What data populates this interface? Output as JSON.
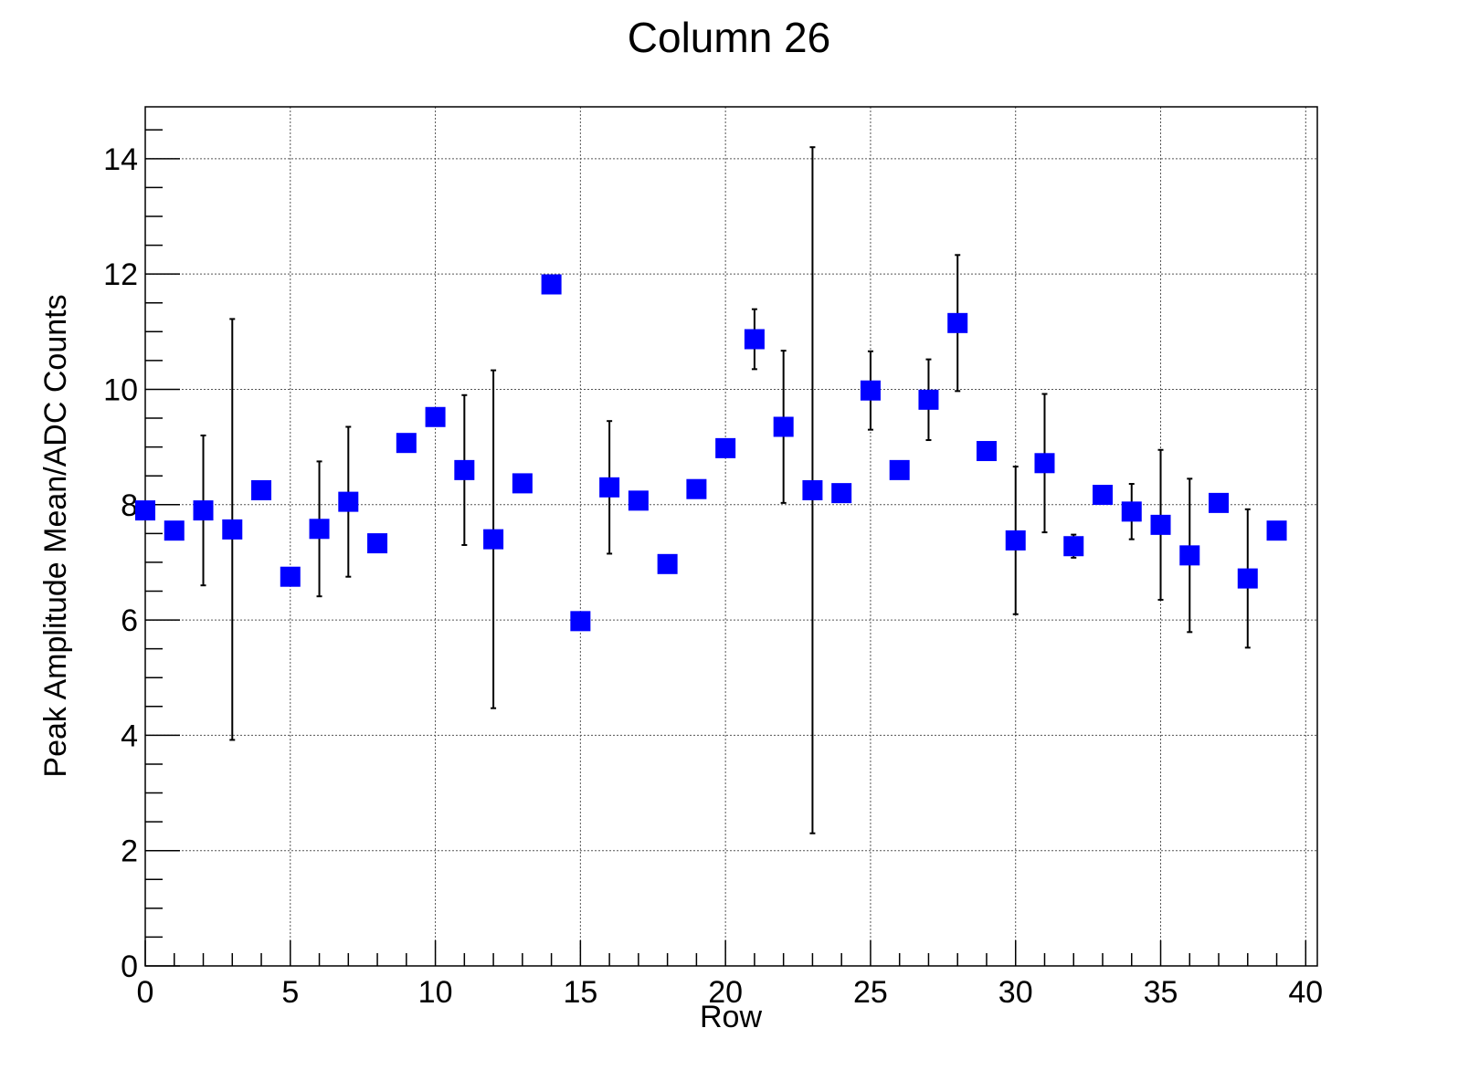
{
  "chart_data": {
    "type": "scatter",
    "title": "Column 26",
    "xlabel": "Row",
    "ylabel": "Peak Amplitude Mean/ADC Counts",
    "xlim": [
      0,
      40.4
    ],
    "ylim": [
      0,
      14.9
    ],
    "x_ticks": [
      0,
      5,
      10,
      15,
      20,
      25,
      30,
      35,
      40
    ],
    "x_tick_labels": [
      "0",
      "5",
      "10",
      "15",
      "20",
      "25",
      "30",
      "35",
      "40"
    ],
    "y_ticks": [
      0,
      2,
      4,
      6,
      8,
      10,
      12,
      14
    ],
    "y_tick_labels": [
      "0",
      "2",
      "4",
      "6",
      "8",
      "10",
      "12",
      "14"
    ],
    "grid": true,
    "marker": "square",
    "marker_color": "#0000ff",
    "error_bar_color": "#000000",
    "series": [
      {
        "points": [
          {
            "x": 0,
            "y": 7.9,
            "err": 0
          },
          {
            "x": 1,
            "y": 7.55,
            "err": 0
          },
          {
            "x": 2,
            "y": 7.9,
            "err": 1.3
          },
          {
            "x": 3,
            "y": 7.57,
            "err": 3.65
          },
          {
            "x": 4,
            "y": 8.25,
            "err": 0
          },
          {
            "x": 5,
            "y": 6.75,
            "err": 0
          },
          {
            "x": 6,
            "y": 7.58,
            "err": 1.17
          },
          {
            "x": 7,
            "y": 8.05,
            "err": 1.3
          },
          {
            "x": 8,
            "y": 7.33,
            "err": 0
          },
          {
            "x": 9,
            "y": 9.07,
            "err": 0
          },
          {
            "x": 10,
            "y": 9.52,
            "err": 0
          },
          {
            "x": 11,
            "y": 8.6,
            "err": 1.3
          },
          {
            "x": 12,
            "y": 7.4,
            "err": 2.93
          },
          {
            "x": 13,
            "y": 8.37,
            "err": 0
          },
          {
            "x": 14,
            "y": 11.82,
            "err": 0
          },
          {
            "x": 15,
            "y": 5.98,
            "err": 0
          },
          {
            "x": 16,
            "y": 8.3,
            "err": 1.15
          },
          {
            "x": 17,
            "y": 8.07,
            "err": 0
          },
          {
            "x": 18,
            "y": 6.97,
            "err": 0
          },
          {
            "x": 19,
            "y": 8.27,
            "err": 0
          },
          {
            "x": 20,
            "y": 8.98,
            "err": 0
          },
          {
            "x": 21,
            "y": 10.87,
            "err": 0.52
          },
          {
            "x": 22,
            "y": 9.35,
            "err": 1.32
          },
          {
            "x": 23,
            "y": 8.25,
            "err": 5.95
          },
          {
            "x": 24,
            "y": 8.2,
            "err": 0
          },
          {
            "x": 25,
            "y": 9.98,
            "err": 0.68
          },
          {
            "x": 26,
            "y": 8.6,
            "err": 0
          },
          {
            "x": 27,
            "y": 9.82,
            "err": 0.7
          },
          {
            "x": 28,
            "y": 11.15,
            "err": 1.18
          },
          {
            "x": 29,
            "y": 8.93,
            "err": 0
          },
          {
            "x": 30,
            "y": 7.38,
            "err": 1.28
          },
          {
            "x": 31,
            "y": 8.72,
            "err": 1.2
          },
          {
            "x": 32,
            "y": 7.28,
            "err": 0.2
          },
          {
            "x": 33,
            "y": 8.17,
            "err": 0
          },
          {
            "x": 34,
            "y": 7.88,
            "err": 0.48
          },
          {
            "x": 35,
            "y": 7.65,
            "err": 1.3
          },
          {
            "x": 36,
            "y": 7.12,
            "err": 1.33
          },
          {
            "x": 37,
            "y": 8.03,
            "err": 0
          },
          {
            "x": 38,
            "y": 6.72,
            "err": 1.2
          },
          {
            "x": 39,
            "y": 7.55,
            "err": 0
          }
        ]
      }
    ]
  }
}
